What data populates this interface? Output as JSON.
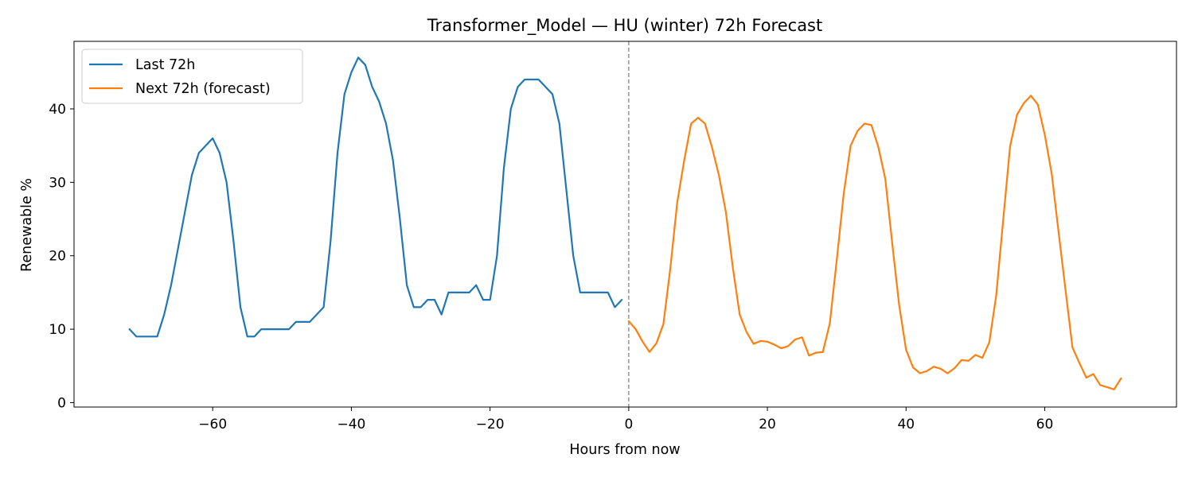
{
  "chart_data": {
    "type": "line",
    "title": "Transformer_Model — HU (winter) 72h Forecast",
    "xlabel": "Hours from now",
    "ylabel": "Renewable %",
    "xlim": [
      -80,
      79
    ],
    "ylim": [
      -0.6,
      49.2
    ],
    "xticks": [
      -60,
      -40,
      -20,
      0,
      20,
      40,
      60
    ],
    "yticks": [
      0,
      10,
      20,
      30,
      40
    ],
    "grid": false,
    "legend_position": "top-left",
    "vline": {
      "x": 0,
      "style": "dashed",
      "color": "#999999"
    },
    "series": [
      {
        "name": "Last 72h",
        "color": "#1f77b4",
        "x": [
          -72,
          -71,
          -70,
          -69,
          -68,
          -67,
          -66,
          -65,
          -64,
          -63,
          -62,
          -61,
          -60,
          -59,
          -58,
          -57,
          -56,
          -55,
          -54,
          -53,
          -52,
          -51,
          -50,
          -49,
          -48,
          -47,
          -46,
          -45,
          -44,
          -43,
          -42,
          -41,
          -40,
          -39,
          -38,
          -37,
          -36,
          -35,
          -34,
          -33,
          -32,
          -31,
          -30,
          -29,
          -28,
          -27,
          -26,
          -25,
          -24,
          -23,
          -22,
          -21,
          -20,
          -19,
          -18,
          -17,
          -16,
          -15,
          -14,
          -13,
          -12,
          -11,
          -10,
          -9,
          -8,
          -7,
          -6,
          -5,
          -4,
          -3,
          -2,
          -1
        ],
        "values": [
          10,
          9,
          9,
          9,
          9,
          12,
          16,
          21,
          26,
          31,
          34,
          35,
          36,
          34,
          30,
          22,
          13,
          9,
          9,
          10,
          10,
          10,
          10,
          10,
          11,
          11,
          11,
          12,
          13,
          22,
          34,
          42,
          45,
          47,
          46,
          43,
          41,
          38,
          33,
          25,
          16,
          13,
          13,
          14,
          14,
          12,
          15,
          15,
          15,
          15,
          16,
          14,
          14,
          20,
          32,
          40,
          43,
          44,
          44,
          44,
          43,
          42,
          38,
          29,
          20,
          15,
          15,
          15,
          15,
          15,
          13,
          14
        ]
      },
      {
        "name": "Next 72h (forecast)",
        "color": "#ff7f0e",
        "x": [
          0,
          1,
          2,
          3,
          4,
          5,
          6,
          7,
          8,
          9,
          10,
          11,
          12,
          13,
          14,
          15,
          16,
          17,
          18,
          19,
          20,
          21,
          22,
          23,
          24,
          25,
          26,
          27,
          28,
          29,
          30,
          31,
          32,
          33,
          34,
          35,
          36,
          37,
          38,
          39,
          40,
          41,
          42,
          43,
          44,
          45,
          46,
          47,
          48,
          49,
          50,
          51,
          52,
          53,
          54,
          55,
          56,
          57,
          58,
          59,
          60,
          61,
          62,
          63,
          64,
          65,
          66,
          67,
          68,
          69,
          70,
          71
        ],
        "values": [
          11.1,
          10,
          8.3,
          6.9,
          8.1,
          10.7,
          18.3,
          27.3,
          33,
          38,
          38.8,
          38,
          34.8,
          31,
          26,
          18.5,
          12,
          9.6,
          8,
          8.4,
          8.3,
          7.9,
          7.4,
          7.7,
          8.6,
          8.9,
          6.4,
          6.8,
          6.9,
          10.8,
          19.4,
          28.4,
          35,
          37,
          38,
          37.8,
          34.8,
          30.5,
          21.7,
          13.3,
          7.2,
          4.8,
          4,
          4.3,
          4.9,
          4.6,
          4,
          4.7,
          5.8,
          5.7,
          6.5,
          6.1,
          8.2,
          14.6,
          24.8,
          34.9,
          39.2,
          40.8,
          41.8,
          40.6,
          36.5,
          31.2,
          23.2,
          15.3,
          7.5,
          5.4,
          3.4,
          3.9,
          2.4,
          2.1,
          1.8,
          3.3
        ]
      }
    ]
  }
}
